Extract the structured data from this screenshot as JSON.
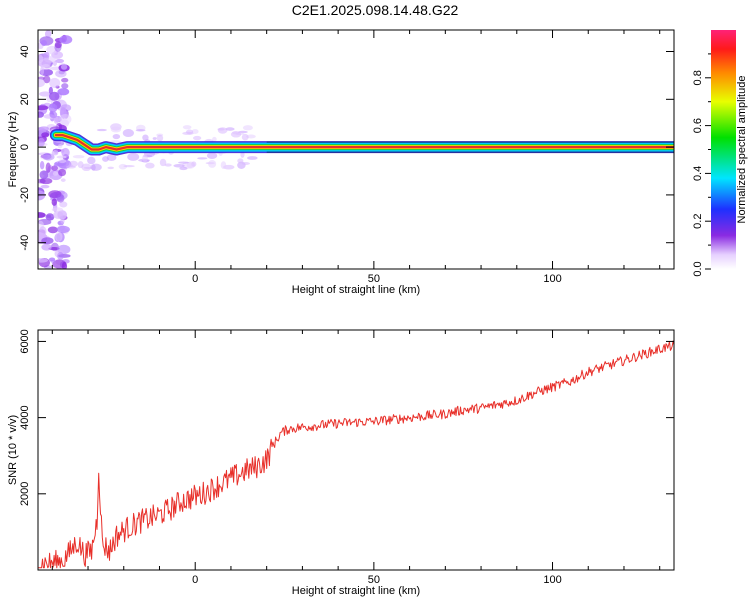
{
  "title": "C2E1.2025.098.14.48.G22",
  "colors": {
    "snr_line": "#e8302a",
    "track_center": "#e8302a",
    "background": "#ffffff"
  },
  "chart_data": [
    {
      "type": "heatmap",
      "xlabel": "Height of straight line (km)",
      "ylabel": "Frequency (Hz)",
      "xlim": [
        -44,
        134
      ],
      "ylim": [
        -51,
        49
      ],
      "xticks": [
        0,
        50,
        100
      ],
      "xtick_labels": [
        "0",
        "50",
        "100"
      ],
      "yticks": [
        -40,
        -20,
        0,
        20,
        40
      ],
      "ytick_labels": [
        "-40",
        "-20",
        "0",
        "20",
        "40"
      ],
      "grid": false,
      "colorbar": {
        "label": "Normalized spectral amplitude",
        "range": [
          0,
          1
        ],
        "ticks": [
          0.0,
          0.2,
          0.4,
          0.6,
          0.8
        ],
        "tick_labels": [
          "0.0",
          "0.2",
          "0.4",
          "0.6",
          "0.8"
        ]
      },
      "ridge": {
        "x": [
          -39,
          -37,
          -35,
          -33,
          -31,
          -29,
          -27,
          -25,
          -22,
          -19,
          -16,
          -12,
          -8,
          -5,
          -2,
          0,
          5,
          10,
          20,
          50,
          100,
          134
        ],
        "y": [
          5,
          5,
          4,
          3,
          1,
          -1,
          -1,
          0,
          -1,
          0,
          0,
          0,
          0,
          0,
          0,
          0,
          0,
          0,
          0,
          0,
          0,
          0
        ]
      },
      "noise_band_x": [
        -44,
        -36
      ]
    },
    {
      "type": "line",
      "xlabel": "Height of straight line (km)",
      "ylabel": "SNR (10 * v/v)",
      "xlim": [
        -44,
        134
      ],
      "ylim": [
        0,
        6300
      ],
      "xticks": [
        0,
        50,
        100
      ],
      "xtick_labels": [
        "0",
        "50",
        "100"
      ],
      "yticks": [
        2000,
        4000,
        6000
      ],
      "ytick_labels": [
        "2000",
        "4000",
        "6000"
      ],
      "grid": false,
      "series": [
        {
          "x": [
            -44,
            -40,
            -37,
            -35,
            -33,
            -31,
            -29,
            -27.5,
            -27,
            -26,
            -24,
            -22,
            -19,
            -16,
            -13,
            -10,
            -7,
            -4,
            -1,
            2,
            5,
            8,
            11,
            14,
            17,
            20,
            22,
            24,
            26,
            30,
            35,
            40,
            45,
            50,
            55,
            60,
            65,
            70,
            75,
            80,
            85,
            90,
            95,
            100,
            105,
            110,
            115,
            120,
            125,
            130,
            134
          ],
          "y": [
            150,
            180,
            250,
            480,
            750,
            400,
            500,
            1300,
            2700,
            700,
            500,
            900,
            1100,
            1250,
            1350,
            1450,
            1600,
            1800,
            1900,
            2000,
            2150,
            2300,
            2450,
            2600,
            2700,
            2900,
            3300,
            3600,
            3700,
            3750,
            3800,
            3850,
            3880,
            3900,
            3950,
            4000,
            4050,
            4100,
            4200,
            4250,
            4350,
            4450,
            4650,
            4800,
            4950,
            5200,
            5350,
            5500,
            5650,
            5800,
            5900
          ]
        }
      ]
    }
  ]
}
